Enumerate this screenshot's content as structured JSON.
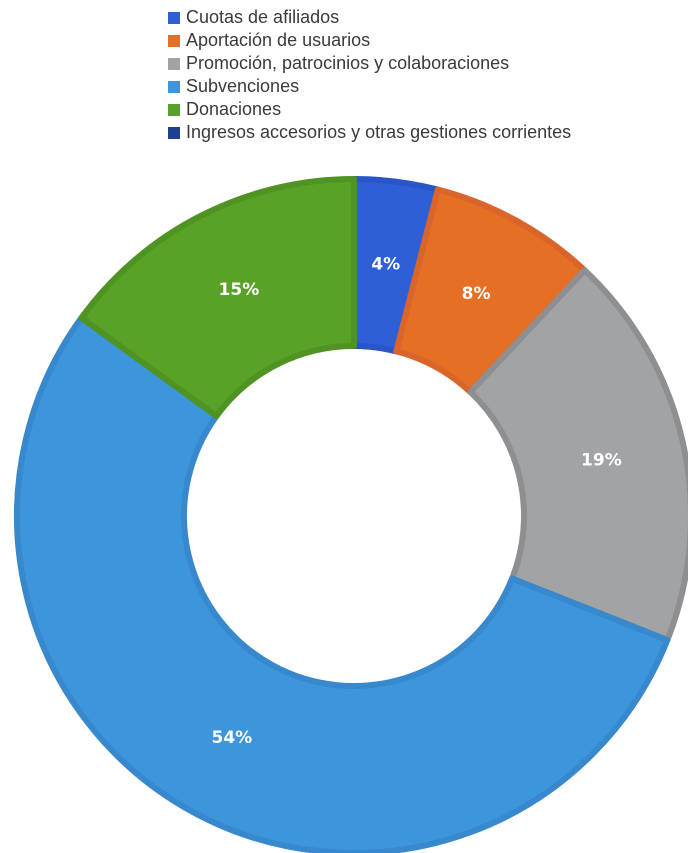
{
  "chart_data": {
    "type": "pie",
    "title": "",
    "legend_position": "top",
    "hole": true,
    "categories": [
      "Cuotas de afiliados",
      "Aportación de usuarios",
      "Promoción, patrocinios y colaboraciones",
      "Subvenciones",
      "Donaciones",
      "Ingresos accesorios y otras gestiones corrientes"
    ],
    "values": [
      4,
      8,
      19,
      54,
      15,
      0
    ],
    "labels": [
      "4%",
      "8%",
      "19%",
      "54%",
      "15%",
      ""
    ],
    "colors": [
      "#2f5fd6",
      "#e46f25",
      "#a2a3a5",
      "#3d96dc",
      "#58a227",
      "#1f3f8f"
    ],
    "border_colors": [
      "#2a55c6",
      "#d9652a",
      "#8d8f92",
      "#3788cc",
      "#4f9422",
      "#1f3f8f"
    ]
  }
}
